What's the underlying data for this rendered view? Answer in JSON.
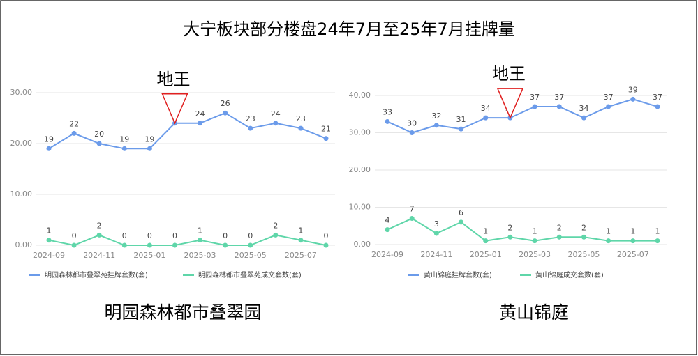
{
  "title": "大宁板块部分楼盘24年7月至25年7月挂牌量",
  "chart_data": [
    {
      "type": "line",
      "caption": "明园森林都市叠翠园",
      "annotation": "地王",
      "categories": [
        "2024-09",
        null,
        "2024-11",
        null,
        "2025-01",
        null,
        "2025-03",
        null,
        "2025-05",
        null,
        "2025-07",
        null
      ],
      "series": [
        {
          "name": "明园森林都市叠翠苑挂牌套数(套)",
          "color": "#6b9bea",
          "values": [
            19,
            22,
            20,
            19,
            19,
            24,
            24,
            26,
            23,
            24,
            23,
            21
          ]
        },
        {
          "name": "明园森林都市叠翠苑成交套数(套)",
          "color": "#5fd6a9",
          "values": [
            1,
            0,
            2,
            0,
            0,
            0,
            1,
            0,
            0,
            2,
            1,
            0
          ]
        }
      ],
      "ylim": [
        0,
        30
      ],
      "yticks": [
        {
          "value": 0,
          "label": "0.00"
        },
        {
          "value": 10,
          "label": "10.00"
        },
        {
          "value": 20,
          "label": "20.00"
        },
        {
          "value": 30,
          "label": "30.00"
        }
      ]
    },
    {
      "type": "line",
      "caption": "黄山锦庭",
      "annotation": "地王",
      "categories": [
        "2024-09",
        null,
        "2024-11",
        null,
        "2025-01",
        null,
        "2025-03",
        null,
        "2025-05",
        null,
        "2025-07",
        null
      ],
      "series": [
        {
          "name": "黄山锦庭挂牌套数(套)",
          "color": "#6b9bea",
          "values": [
            33,
            30,
            32,
            31,
            34,
            34,
            37,
            37,
            34,
            37,
            39,
            37
          ]
        },
        {
          "name": "黄山锦庭成交套数(套)",
          "color": "#5fd6a9",
          "values": [
            4,
            7,
            3,
            6,
            1,
            2,
            1,
            2,
            2,
            1,
            1,
            1
          ]
        }
      ],
      "ylim": [
        0,
        40
      ],
      "yticks": [
        {
          "value": 0,
          "label": "0.00"
        },
        {
          "value": 10,
          "label": "10.00"
        },
        {
          "value": 20,
          "label": "20.00"
        },
        {
          "value": 30,
          "label": "30.00"
        },
        {
          "value": 40,
          "label": "40.00"
        }
      ]
    }
  ]
}
